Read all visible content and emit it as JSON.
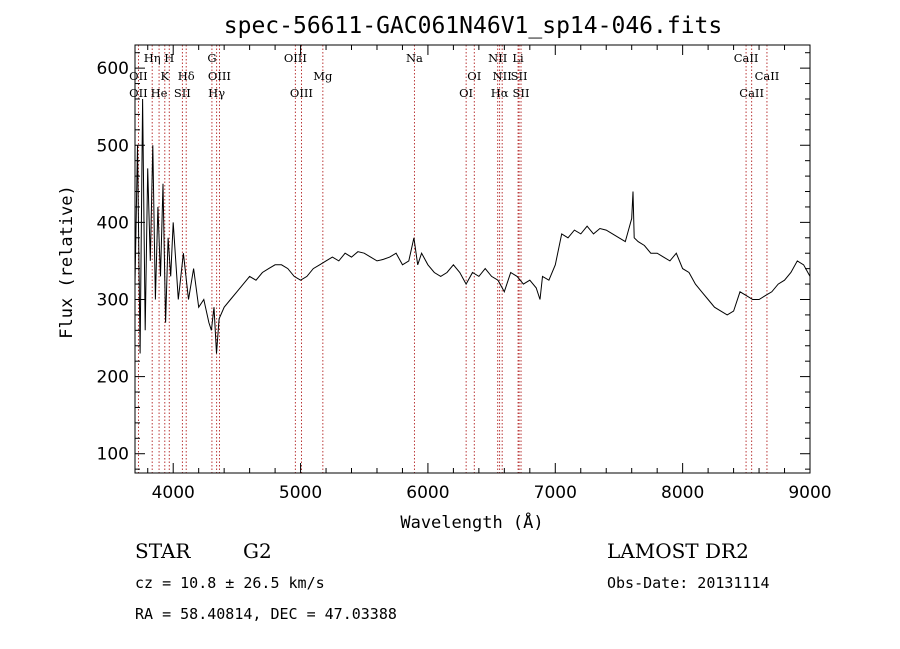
{
  "chart_data": {
    "type": "line",
    "title": "spec-56611-GAC061N46V1_sp14-046.fits",
    "xlabel": "Wavelength (Å)",
    "ylabel": "Flux (relative)",
    "xlim": [
      3700,
      9000
    ],
    "ylim": [
      75,
      630
    ],
    "xticks": [
      4000,
      5000,
      6000,
      7000,
      8000,
      9000
    ],
    "yticks": [
      100,
      200,
      300,
      400,
      500,
      600
    ],
    "series": [
      {
        "x": [
          3700,
          3720,
          3740,
          3760,
          3780,
          3800,
          3820,
          3840,
          3860,
          3880,
          3900,
          3920,
          3940,
          3960,
          3980,
          4000,
          4040,
          4080,
          4120,
          4160,
          4200,
          4240,
          4280,
          4300,
          4320,
          4340,
          4360,
          4400,
          4450,
          4500,
          4550,
          4600,
          4650,
          4700,
          4750,
          4800,
          4850,
          4900,
          4950,
          5000,
          5050,
          5100,
          5150,
          5200,
          5250,
          5300,
          5350,
          5400,
          5450,
          5500,
          5550,
          5600,
          5650,
          5700,
          5750,
          5800,
          5850,
          5890,
          5920,
          5950,
          6000,
          6050,
          6100,
          6150,
          6200,
          6250,
          6300,
          6350,
          6400,
          6450,
          6500,
          6550,
          6600,
          6650,
          6700,
          6750,
          6800,
          6850,
          6880,
          6900,
          6950,
          7000,
          7050,
          7100,
          7150,
          7200,
          7250,
          7300,
          7350,
          7400,
          7450,
          7500,
          7550,
          7600,
          7610,
          7620,
          7650,
          7700,
          7750,
          7800,
          7850,
          7900,
          7950,
          8000,
          8050,
          8100,
          8150,
          8200,
          8250,
          8300,
          8350,
          8400,
          8450,
          8500,
          8550,
          8600,
          8650,
          8700,
          8750,
          8800,
          8850,
          8900,
          8950,
          9000
        ],
        "y": [
          320,
          500,
          230,
          560,
          260,
          470,
          350,
          500,
          300,
          420,
          330,
          450,
          270,
          380,
          330,
          400,
          300,
          360,
          300,
          340,
          290,
          300,
          270,
          260,
          290,
          230,
          275,
          290,
          300,
          310,
          320,
          330,
          325,
          335,
          340,
          345,
          345,
          340,
          330,
          325,
          330,
          340,
          345,
          350,
          355,
          350,
          360,
          355,
          362,
          360,
          355,
          350,
          352,
          355,
          360,
          345,
          350,
          380,
          345,
          360,
          345,
          335,
          330,
          335,
          345,
          335,
          320,
          335,
          330,
          340,
          330,
          325,
          310,
          335,
          330,
          320,
          325,
          315,
          300,
          330,
          325,
          345,
          385,
          380,
          390,
          385,
          395,
          385,
          392,
          390,
          385,
          380,
          375,
          405,
          440,
          380,
          375,
          370,
          360,
          360,
          355,
          350,
          360,
          340,
          335,
          320,
          310,
          300,
          290,
          285,
          280,
          285,
          310,
          305,
          300,
          300,
          305,
          310,
          320,
          325,
          335,
          350,
          345,
          330
        ]
      }
    ],
    "emission_lines": [
      {
        "label": "OII",
        "x": 3727,
        "row": 2
      },
      {
        "label": "OII",
        "x": 3727,
        "row": 1
      },
      {
        "label": "Hη",
        "x": 3835,
        "row": 0
      },
      {
        "label": "He",
        "x": 3889,
        "row": 2
      },
      {
        "label": "K",
        "x": 3934,
        "row": 1
      },
      {
        "label": "H",
        "x": 3969,
        "row": 0
      },
      {
        "label": "Hδ",
        "x": 4102,
        "row": 1
      },
      {
        "label": "SII",
        "x": 4072,
        "row": 2
      },
      {
        "label": "G",
        "x": 4304,
        "row": 0
      },
      {
        "label": "Hγ",
        "x": 4341,
        "row": 2
      },
      {
        "label": "OIII",
        "x": 4363,
        "row": 1
      },
      {
        "label": "OIII",
        "x": 4959,
        "row": 0
      },
      {
        "label": "OIII",
        "x": 5007,
        "row": 2
      },
      {
        "label": "Mg",
        "x": 5175,
        "row": 1
      },
      {
        "label": "Na",
        "x": 5894,
        "row": 0
      },
      {
        "label": "OI",
        "x": 6300,
        "row": 2
      },
      {
        "label": "OI",
        "x": 6364,
        "row": 1
      },
      {
        "label": "NII",
        "x": 6548,
        "row": 0
      },
      {
        "label": "Hα",
        "x": 6563,
        "row": 2
      },
      {
        "label": "NII",
        "x": 6583,
        "row": 1
      },
      {
        "label": "Li",
        "x": 6708,
        "row": 0
      },
      {
        "label": "SII",
        "x": 6716,
        "row": 1
      },
      {
        "label": "SII",
        "x": 6731,
        "row": 2
      },
      {
        "label": "CaII",
        "x": 8498,
        "row": 0
      },
      {
        "label": "CaII",
        "x": 8542,
        "row": 2
      },
      {
        "label": "CaII",
        "x": 8662,
        "row": 1
      }
    ]
  },
  "info": {
    "object_class": "STAR",
    "subclass": "G2",
    "survey": "LAMOST DR2",
    "redshift": "cz = 10.8 ± 26.5 km/s",
    "obs_date": "Obs-Date: 20131114",
    "coordinates": "RA =  58.40814, DEC =  47.03388"
  }
}
